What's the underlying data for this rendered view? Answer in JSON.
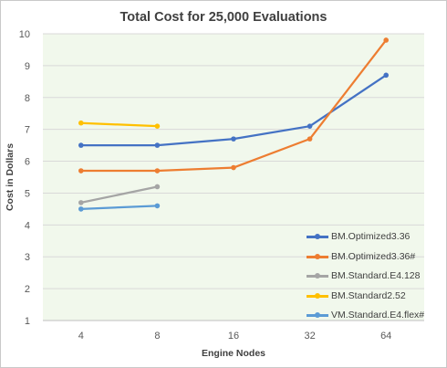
{
  "chart_data": {
    "type": "line",
    "title": "Total Cost for 25,000 Evaluations",
    "xlabel": "Engine Nodes",
    "ylabel": "Cost in Dollars",
    "categories": [
      "4",
      "8",
      "16",
      "32",
      "64"
    ],
    "ylim": [
      1,
      10
    ],
    "yticks": [
      "1",
      "2",
      "3",
      "4",
      "5",
      "6",
      "7",
      "8",
      "9",
      "10"
    ],
    "grid": true,
    "legend_position": "bottom-right",
    "plot_background": "#f1f8ec",
    "series": [
      {
        "name": "BM.Optimized3.36",
        "color": "#4472c4",
        "values": [
          6.5,
          6.5,
          6.7,
          7.1,
          8.7
        ]
      },
      {
        "name": "BM.Optimized3.36#",
        "color": "#ed7d31",
        "values": [
          5.7,
          5.7,
          5.8,
          6.7,
          9.8
        ]
      },
      {
        "name": "BM.Standard.E4.128",
        "color": "#a5a5a5",
        "values": [
          4.7,
          5.2,
          null,
          null,
          null
        ]
      },
      {
        "name": "BM.Standard2.52",
        "color": "#ffc000",
        "values": [
          7.2,
          7.1,
          null,
          null,
          null
        ]
      },
      {
        "name": "VM.Standard.E4.flex#",
        "color": "#5b9bd5",
        "values": [
          4.5,
          4.6,
          null,
          null,
          null
        ]
      }
    ]
  }
}
